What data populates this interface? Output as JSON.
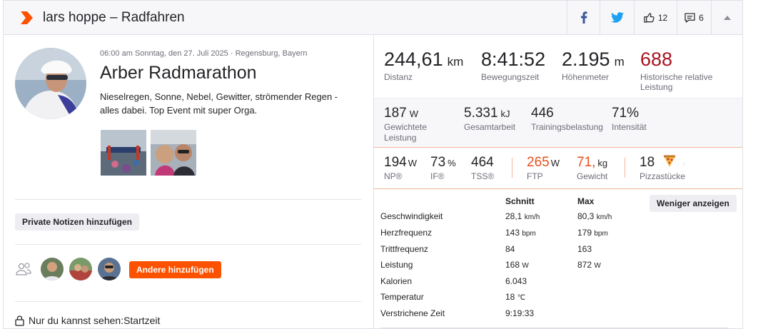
{
  "header": {
    "title": "lars hoppe – Radfahren",
    "kudos_count": "12",
    "comment_count": "6"
  },
  "activity": {
    "meta": "06:00 am Sonntag, den 27. Juli 2025 · Regensburg, Bayern",
    "name": "Arber Radmarathon",
    "description": "Nieselregen, Sonne, Nebel, Gewitter, strömender Regen - alles dabei. Top Event mit super Orga."
  },
  "notes_button": "Private Notizen hinzufügen",
  "add_others_button": "Andere hinzufügen",
  "privacy_text": "Nur du kannst sehen:Startzeit",
  "primary_stats": [
    {
      "value": "244,61",
      "unit": "km",
      "label": "Distanz"
    },
    {
      "value": "8:41:52",
      "unit": "",
      "label": "Bewegungszeit"
    },
    {
      "value": "2.195",
      "unit": "m",
      "label": "Höhenmeter"
    },
    {
      "value": "688",
      "unit": "",
      "label": "Historische relative Leistung"
    }
  ],
  "secondary_stats": [
    {
      "value": "187",
      "unit": "W",
      "label": "Gewichtete Leistung"
    },
    {
      "value": "5.331",
      "unit": "kJ",
      "label": "Gesamtarbeit"
    },
    {
      "value": "446",
      "unit": "",
      "label": "Trainingsbelastung"
    },
    {
      "value": "71%",
      "unit": "",
      "label": "Intensität"
    }
  ],
  "tertiary_stats": [
    {
      "value": "194",
      "unit": "W",
      "label": "NP®"
    },
    {
      "value": "73",
      "unit": "%",
      "label": "IF®"
    },
    {
      "value": "464",
      "unit": "",
      "label": "TSS®"
    },
    {
      "value": "265",
      "unit": "W",
      "label": "FTP"
    },
    {
      "value": "71,",
      "unit": "kg",
      "label": "Gewicht"
    },
    {
      "value": "18",
      "unit": "",
      "label": "Pizzastücke"
    }
  ],
  "details_table": {
    "headers": {
      "avg": "Schnitt",
      "max": "Max"
    },
    "rows": [
      {
        "label": "Geschwindigkeit",
        "avg": "28,1",
        "avg_unit": "km/h",
        "max": "80,3",
        "max_unit": "km/h"
      },
      {
        "label": "Herzfrequenz",
        "avg": "143",
        "avg_unit": "bpm",
        "max": "179",
        "max_unit": "bpm"
      },
      {
        "label": "Trittfrequenz",
        "avg": "84",
        "avg_unit": "",
        "max": "163",
        "max_unit": ""
      },
      {
        "label": "Leistung",
        "avg": "168",
        "avg_unit": "W",
        "max": "872",
        "max_unit": "W"
      },
      {
        "label": "Kalorien",
        "avg": "6.043",
        "avg_unit": "",
        "max": "",
        "max_unit": ""
      },
      {
        "label": "Temperatur",
        "avg": "18",
        "avg_unit": "℃",
        "max": "",
        "max_unit": ""
      },
      {
        "label": "Verstrichene Zeit",
        "avg": "9:19:33",
        "avg_unit": "",
        "max": "",
        "max_unit": ""
      }
    ]
  },
  "show_less_button": "Weniger anzeigen",
  "colors": {
    "brand_orange": "#fc5200",
    "relative_effort_red": "#a8141f",
    "ftp_orange": "#e8521a",
    "facebook_blue": "#3b5998",
    "twitter_blue": "#1da1f2"
  },
  "icons": [
    "strava-logo-icon",
    "facebook-icon",
    "twitter-icon",
    "kudos-thumb-icon",
    "comment-icon",
    "collapse-arrow-icon",
    "group-icon",
    "lock-icon",
    "pizza-icon"
  ]
}
